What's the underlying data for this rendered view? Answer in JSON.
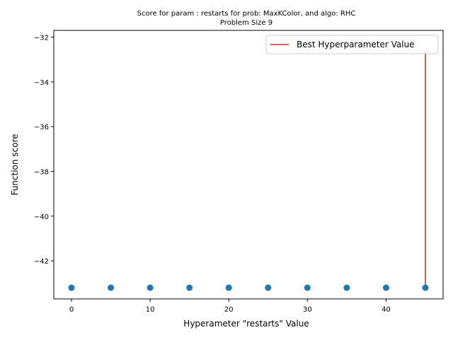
{
  "chart_data": {
    "type": "scatter",
    "title_line1": "Score for param : restarts for prob: MaxKColor, and algo: RHC",
    "title_line2": "Problem Size 9",
    "xlabel": "Hyperameter \"restarts\" Value",
    "ylabel": "Function score",
    "xlim": [
      -2.25,
      47.25
    ],
    "ylim": [
      -43.7,
      -31.7
    ],
    "xticks": [
      0,
      10,
      20,
      30,
      40
    ],
    "yticks": [
      -42,
      -40,
      -38,
      -36,
      -34,
      -32
    ],
    "ytick_labels": [
      "−42",
      "−40",
      "−38",
      "−36",
      "−34",
      "−32"
    ],
    "xtick_labels": [
      "0",
      "10",
      "20",
      "30",
      "40"
    ],
    "series": [
      {
        "color": "#1f77b4",
        "x": [
          0,
          5,
          10,
          15,
          20,
          25,
          30,
          35,
          40,
          45
        ],
        "y": [
          -43.2,
          -43.2,
          -43.2,
          -43.2,
          -43.2,
          -43.2,
          -43.2,
          -43.2,
          -43.2,
          -43.2
        ]
      }
    ],
    "best_line": {
      "label": "Best Hyperparameter Value",
      "x": 45,
      "y_range": [
        -43.2,
        -32.6
      ],
      "color": "#d62728"
    },
    "legend": {
      "placement": "top-right",
      "entries": [
        "Best Hyperparameter Value"
      ]
    },
    "grid": false
  }
}
